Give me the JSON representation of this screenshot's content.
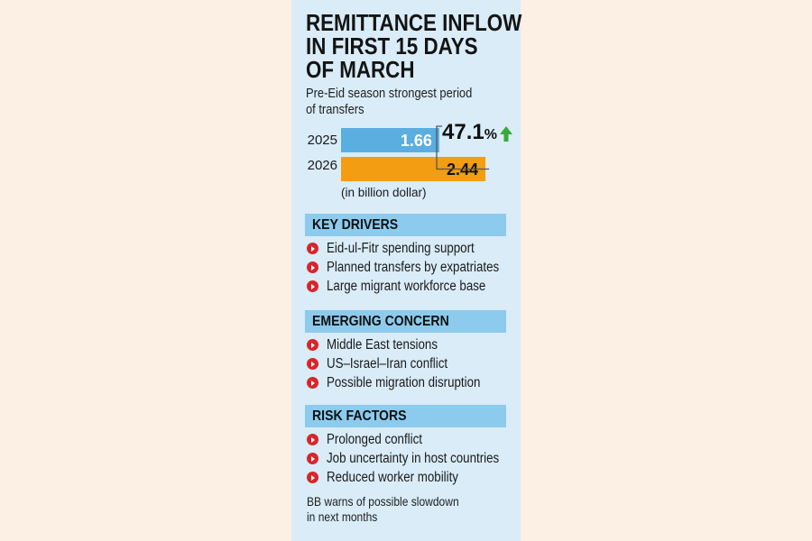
{
  "title": {
    "lines": [
      "REMITTANCE INFLOW",
      "IN FIRST 15 DAYS",
      "OF MARCH"
    ]
  },
  "subtitle": {
    "lines": [
      "Pre-Eid season strongest period",
      "of transfers"
    ]
  },
  "chart_data": {
    "type": "bar",
    "orientation": "horizontal",
    "categories": [
      "2025",
      "2026"
    ],
    "values": [
      1.66,
      2.44
    ],
    "value_labels": [
      "1.66",
      "2.44"
    ],
    "unit_note": "(in billion dollar)",
    "colors": [
      "#5aaee0",
      "#f29d12"
    ],
    "change_label": "47.1",
    "change_unit": "%",
    "change_direction": "up",
    "change_color": "#3aa93a"
  },
  "sections": [
    {
      "heading": "KEY DRIVERS",
      "items": [
        "Eid-ul-Fitr spending support",
        "Planned transfers by expatriates",
        "Large migrant workforce base"
      ]
    },
    {
      "heading": "EMERGING CONCERN",
      "items": [
        "Middle East tensions",
        "US–Israel–Iran conflict",
        "Possible migration disruption"
      ]
    },
    {
      "heading": "RISK FACTORS",
      "items": [
        "Prolonged conflict",
        "Job uncertainty in host countries",
        "Reduced worker mobility"
      ]
    }
  ],
  "footer": {
    "lines": [
      "BB warns of possible slowdown",
      "in next months"
    ]
  },
  "colors": {
    "background": "#fcefe3",
    "panel": "#d9ecf8",
    "section_head": "#8ccbed",
    "bullet": "#d7262b"
  }
}
